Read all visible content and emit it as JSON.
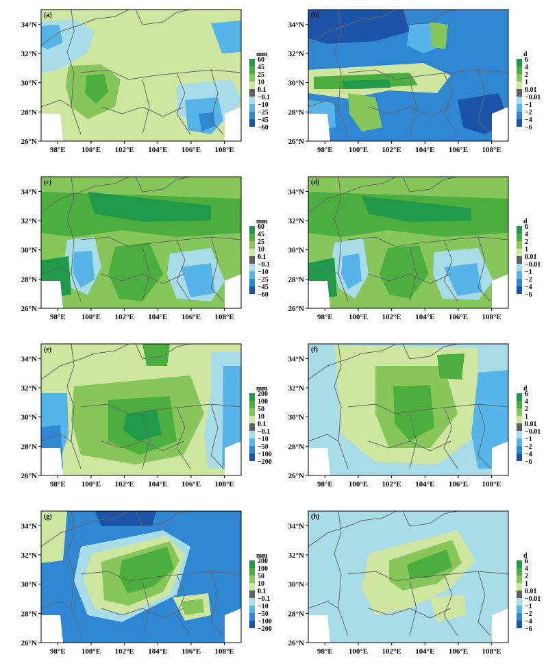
{
  "axes": {
    "lat_labels": [
      "34°N",
      "32°N",
      "30°N",
      "28°N",
      "26°N"
    ],
    "lon_labels": [
      "98°E",
      "100°E",
      "102°E",
      "104°E",
      "106°E",
      "108°E"
    ]
  },
  "colors": {
    "dark_blue": "#1a53a8",
    "mid_blue": "#2f86d2",
    "light_blue": "#56b4e9",
    "pale_blue": "#a8dce8",
    "neutral_gray": "#606060",
    "pale_green": "#cfe6a0",
    "light_green": "#86c65a",
    "mid_green": "#4cae3e",
    "dark_green": "#209a4a",
    "border": "#666666"
  },
  "colorbars": {
    "mm_small": {
      "unit": "mm",
      "labels": [
        "60",
        "45",
        "25",
        "10",
        "0.1",
        "−0.1",
        "−10",
        "−25",
        "−45",
        "−60"
      ]
    },
    "mm_large": {
      "unit": "mm",
      "labels": [
        "200",
        "100",
        "50",
        "10",
        "0.1",
        "−0.1",
        "−10",
        "−50",
        "−100",
        "−200"
      ]
    },
    "days": {
      "unit": "d",
      "labels": [
        "6",
        "4",
        "2",
        "1",
        "0.01",
        "−0.01",
        "−1",
        "−2",
        "−4",
        "−6"
      ]
    }
  },
  "panels": [
    {
      "label": "(a)",
      "colorbar": "mm_small",
      "base": "pale_green"
    },
    {
      "label": "(b)",
      "colorbar": "days",
      "base": "mid_blue"
    },
    {
      "label": "(c)",
      "colorbar": "mm_small",
      "base": "light_green"
    },
    {
      "label": "(d)",
      "colorbar": "days",
      "base": "light_green"
    },
    {
      "label": "(e)",
      "colorbar": "mm_large",
      "base": "pale_green"
    },
    {
      "label": "(f)",
      "colorbar": "days",
      "base": "pale_blue"
    },
    {
      "label": "(g)",
      "colorbar": "mm_large",
      "base": "mid_blue"
    },
    {
      "label": "(h)",
      "colorbar": "days",
      "base": "pale_blue"
    }
  ]
}
